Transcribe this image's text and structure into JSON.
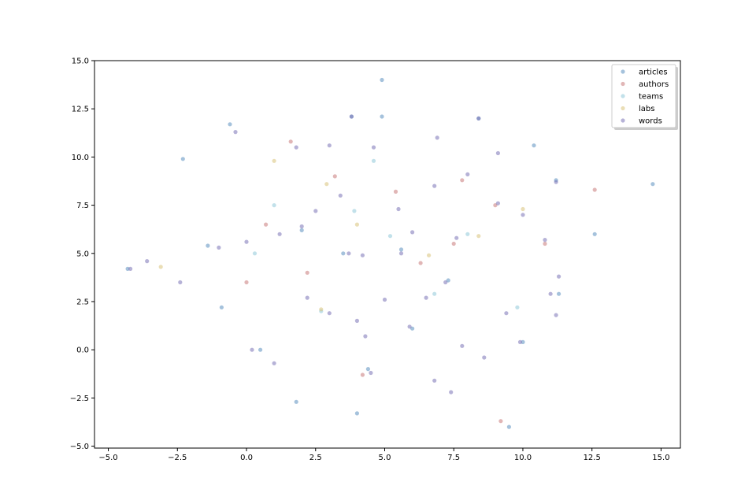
{
  "chart_data": {
    "type": "scatter",
    "title": "",
    "xlabel": "",
    "ylabel": "",
    "xlim": [
      -5.5,
      15.7
    ],
    "ylim": [
      -5.1,
      15.0
    ],
    "xticks": [
      -5.0,
      -2.5,
      0.0,
      2.5,
      5.0,
      7.5,
      10.0,
      12.5,
      15.0
    ],
    "xtick_labels": [
      "−5.0",
      "−2.5",
      "0.0",
      "2.5",
      "5.0",
      "7.5",
      "10.0",
      "12.5",
      "15.0"
    ],
    "yticks": [
      -5.0,
      -2.5,
      0.0,
      2.5,
      5.0,
      7.5,
      10.0,
      12.5,
      15.0
    ],
    "ytick_labels": [
      "−5.0",
      "−2.5",
      "0.0",
      "2.5",
      "5.0",
      "7.5",
      "10.0",
      "12.5",
      "15.0"
    ],
    "grid": false,
    "legend_position": "top-right",
    "series": [
      {
        "name": "articles",
        "color": "#5b8fc0",
        "points": [
          [
            4.9,
            14.0
          ],
          [
            -0.6,
            11.7
          ],
          [
            3.8,
            12.1
          ],
          [
            8.4,
            12.0
          ],
          [
            4.9,
            12.1
          ],
          [
            -2.3,
            9.9
          ],
          [
            10.4,
            10.6
          ],
          [
            11.2,
            8.8
          ],
          [
            14.7,
            8.6
          ],
          [
            12.6,
            6.0
          ],
          [
            3.5,
            5.0
          ],
          [
            5.6,
            5.2
          ],
          [
            2.0,
            6.2
          ],
          [
            -1.4,
            5.4
          ],
          [
            -4.3,
            4.2
          ],
          [
            -0.9,
            2.2
          ],
          [
            7.3,
            3.6
          ],
          [
            11.3,
            2.9
          ],
          [
            10.0,
            0.4
          ],
          [
            4.4,
            -1.0
          ],
          [
            4.0,
            -3.3
          ],
          [
            9.5,
            -4.0
          ],
          [
            1.8,
            -2.7
          ],
          [
            0.5,
            0.0
          ],
          [
            6.0,
            1.1
          ]
        ]
      },
      {
        "name": "authors",
        "color": "#c97a7a",
        "points": [
          [
            1.6,
            10.8
          ],
          [
            0.7,
            6.5
          ],
          [
            3.2,
            9.0
          ],
          [
            7.8,
            8.8
          ],
          [
            10.8,
            5.5
          ],
          [
            6.3,
            4.5
          ],
          [
            9.2,
            -3.7
          ],
          [
            4.2,
            -1.3
          ],
          [
            12.6,
            8.3
          ],
          [
            2.2,
            4.0
          ],
          [
            5.4,
            8.2
          ],
          [
            7.5,
            5.5
          ],
          [
            0.0,
            3.5
          ],
          [
            9.0,
            7.5
          ]
        ]
      },
      {
        "name": "teams",
        "color": "#8fc9d9",
        "points": [
          [
            1.0,
            7.5
          ],
          [
            4.6,
            9.8
          ],
          [
            8.0,
            6.0
          ],
          [
            6.8,
            2.9
          ],
          [
            2.7,
            2.0
          ],
          [
            9.8,
            2.2
          ],
          [
            5.2,
            5.9
          ],
          [
            3.9,
            7.2
          ],
          [
            0.3,
            5.0
          ]
        ]
      },
      {
        "name": "labs",
        "color": "#d9c27a",
        "points": [
          [
            -3.1,
            4.3
          ],
          [
            2.9,
            8.6
          ],
          [
            8.4,
            5.9
          ],
          [
            4.0,
            6.5
          ],
          [
            1.0,
            9.8
          ],
          [
            6.6,
            4.9
          ],
          [
            2.7,
            2.1
          ],
          [
            10.0,
            7.3
          ]
        ]
      },
      {
        "name": "words",
        "color": "#7a72b6",
        "points": [
          [
            3.7,
            5.0
          ],
          [
            4.2,
            4.9
          ],
          [
            2.0,
            6.4
          ],
          [
            1.2,
            6.0
          ],
          [
            0.0,
            5.6
          ],
          [
            -1.0,
            5.3
          ],
          [
            -3.6,
            4.6
          ],
          [
            -4.2,
            4.2
          ],
          [
            5.5,
            7.3
          ],
          [
            6.8,
            8.5
          ],
          [
            8.0,
            9.1
          ],
          [
            9.1,
            7.6
          ],
          [
            10.0,
            7.0
          ],
          [
            10.8,
            5.7
          ],
          [
            7.6,
            5.8
          ],
          [
            7.2,
            3.5
          ],
          [
            6.5,
            2.7
          ],
          [
            5.0,
            2.6
          ],
          [
            4.0,
            1.5
          ],
          [
            3.0,
            1.9
          ],
          [
            4.3,
            0.7
          ],
          [
            5.9,
            1.2
          ],
          [
            7.8,
            0.2
          ],
          [
            8.6,
            -0.4
          ],
          [
            9.9,
            0.4
          ],
          [
            9.4,
            1.9
          ],
          [
            11.0,
            2.9
          ],
          [
            11.3,
            3.8
          ],
          [
            11.2,
            8.7
          ],
          [
            8.4,
            12.0
          ],
          [
            3.8,
            12.1
          ],
          [
            -0.4,
            11.3
          ],
          [
            1.8,
            10.5
          ],
          [
            3.0,
            10.6
          ],
          [
            4.6,
            10.5
          ],
          [
            6.9,
            11.0
          ],
          [
            9.1,
            10.2
          ],
          [
            11.2,
            1.8
          ],
          [
            4.5,
            -1.2
          ],
          [
            6.8,
            -1.6
          ],
          [
            7.4,
            -2.2
          ],
          [
            0.2,
            0.0
          ],
          [
            1.0,
            -0.7
          ],
          [
            -2.4,
            3.5
          ],
          [
            2.2,
            2.7
          ],
          [
            5.6,
            5.0
          ],
          [
            6.0,
            6.1
          ],
          [
            3.4,
            8.0
          ],
          [
            2.5,
            7.2
          ]
        ]
      }
    ]
  }
}
